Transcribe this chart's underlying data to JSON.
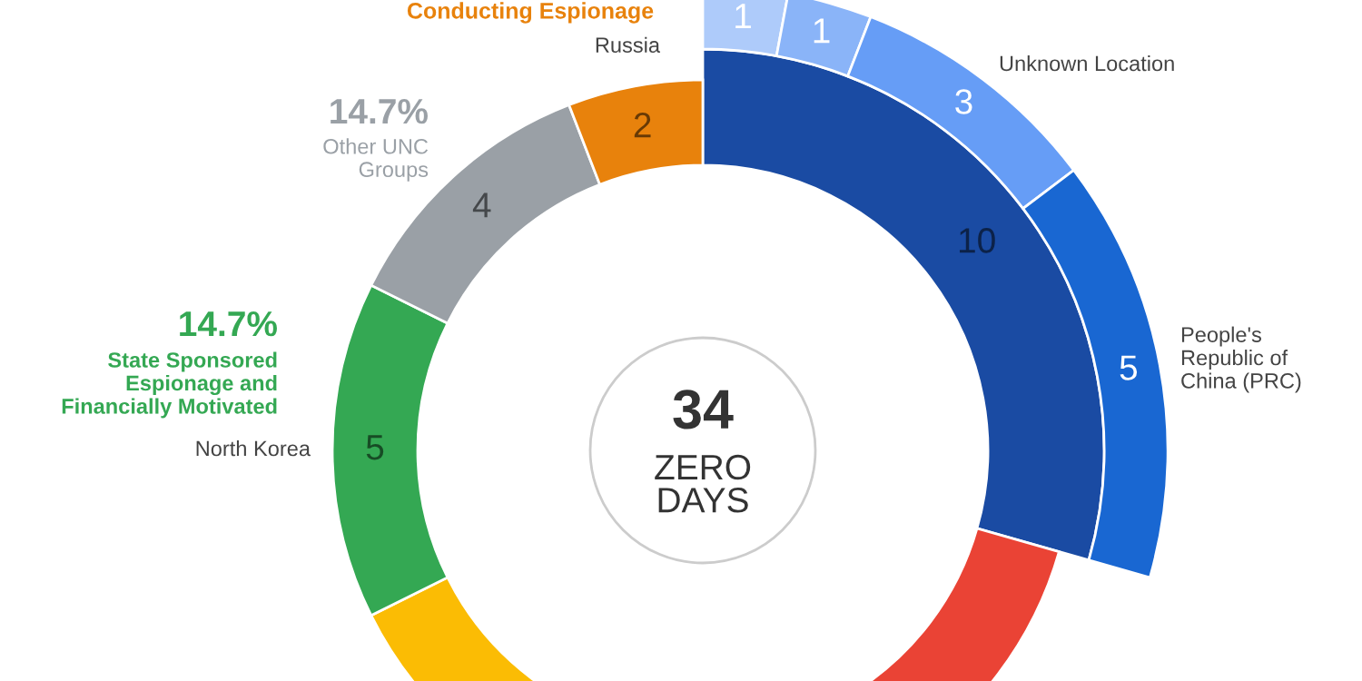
{
  "chart_data": {
    "type": "donut",
    "categories": [
      null,
      null,
      null,
      "North Korea",
      null,
      "Russia"
    ],
    "series": [
      {
        "values": [
          10,
          8,
          5,
          5,
          4,
          2
        ],
        "colors": [
          "#1a4ba3",
          "#ea4335",
          "#fbbc04",
          "#34a853",
          "#9aa0a6",
          "#e8820c"
        ],
        "value_labels": [
          "10",
          null,
          null,
          "5",
          "4",
          "2"
        ]
      },
      {
        "values": [
          1,
          1,
          3,
          5,
          null,
          null
        ],
        "colors": [
          "#aecbfa",
          "#8ab4f8",
          "#669df6",
          "#1967d2",
          null,
          null
        ],
        "value_labels": [
          "1",
          "1",
          "3",
          "5",
          null,
          null
        ]
      }
    ],
    "annotations": [
      "Conducting Espionage",
      "14.7%",
      "Other UNC\nGroups",
      "14.7%",
      "State Sponsored\nEspionage and\nFinancially Motivated",
      "34",
      "ZERO\nDAYS",
      "Unknown Location",
      "People's\nRepublic of\nChina (PRC)"
    ]
  }
}
